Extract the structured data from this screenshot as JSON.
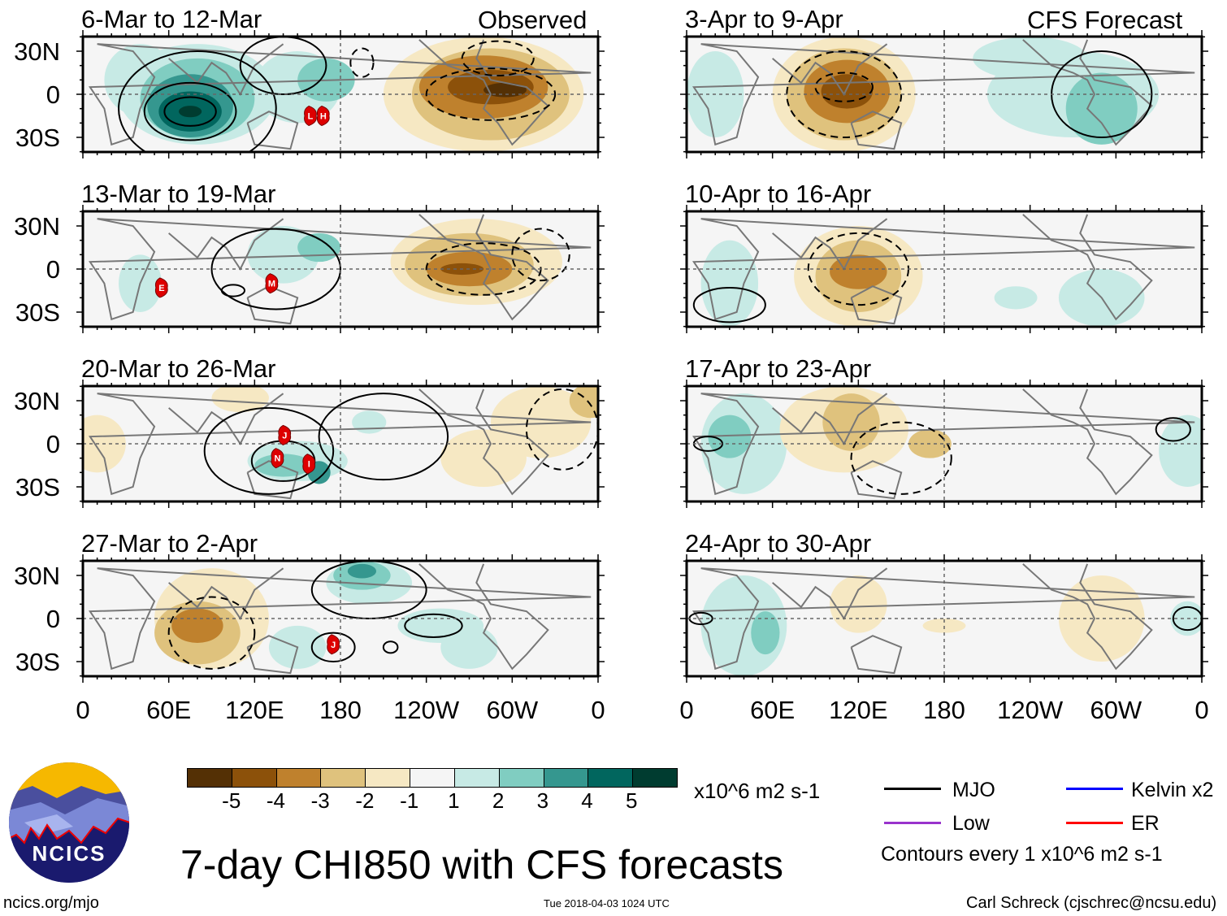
{
  "headers": {
    "observed": "Observed",
    "forecast": "CFS Forecast"
  },
  "panels": [
    {
      "title": "6-Mar to 12-Mar",
      "column": "observed",
      "storms": [
        {
          "label": "L",
          "lon": 159,
          "lat": -15
        },
        {
          "label": "H",
          "lon": 168,
          "lat": -15
        }
      ]
    },
    {
      "title": "13-Mar to 19-Mar",
      "column": "observed",
      "storms": [
        {
          "label": "E",
          "lon": 55,
          "lat": -13
        },
        {
          "label": "M",
          "lon": 132,
          "lat": -10
        }
      ]
    },
    {
      "title": "20-Mar to 26-Mar",
      "column": "observed",
      "storms": [
        {
          "label": "J",
          "lon": 141,
          "lat": 6
        },
        {
          "label": "N",
          "lon": 136,
          "lat": -10
        },
        {
          "label": "I",
          "lon": 158,
          "lat": -14
        }
      ]
    },
    {
      "title": "27-Mar to 2-Apr",
      "column": "observed",
      "storms": [
        {
          "label": "J",
          "lon": 175,
          "lat": -18
        }
      ]
    },
    {
      "title": "3-Apr to 9-Apr",
      "column": "forecast",
      "storms": []
    },
    {
      "title": "10-Apr to 16-Apr",
      "column": "forecast",
      "storms": []
    },
    {
      "title": "17-Apr to 23-Apr",
      "column": "forecast",
      "storms": []
    },
    {
      "title": "24-Apr to 30-Apr",
      "column": "forecast",
      "storms": []
    }
  ],
  "lat_labels": [
    "30N",
    "0",
    "30S"
  ],
  "lon_labels": [
    "0",
    "60E",
    "120E",
    "180",
    "120W",
    "60W",
    "0"
  ],
  "colorbar": {
    "colors": [
      "#543005",
      "#8c510a",
      "#bf812d",
      "#dfc27d",
      "#f6e8c3",
      "#f5f5f5",
      "#c7eae5",
      "#80cdc1",
      "#35978f",
      "#01665e",
      "#003c30"
    ],
    "labels": [
      "-5",
      "-4",
      "-3",
      "-2",
      "-1",
      "1",
      "2",
      "3",
      "4",
      "5"
    ],
    "units": "x10^6 m2 s-1"
  },
  "legend": {
    "items": [
      {
        "label": "MJO",
        "color": "#000000"
      },
      {
        "label": "Kelvin x2",
        "color": "#0000ff"
      },
      {
        "label": "Low",
        "color": "#9933cc"
      },
      {
        "label": "ER",
        "color": "#ff0000"
      }
    ],
    "contours_note": "Contours every 1 x10^6 m2 s-1"
  },
  "logo": {
    "text": "NCICS"
  },
  "title": "7-day CHI850 with CFS forecasts",
  "footer": {
    "url": "ncics.org/mjo",
    "timestamp": "Tue 2018-04-03 1024 UTC",
    "author": "Carl Schreck (cjschrec@ncsu.edu)"
  }
}
